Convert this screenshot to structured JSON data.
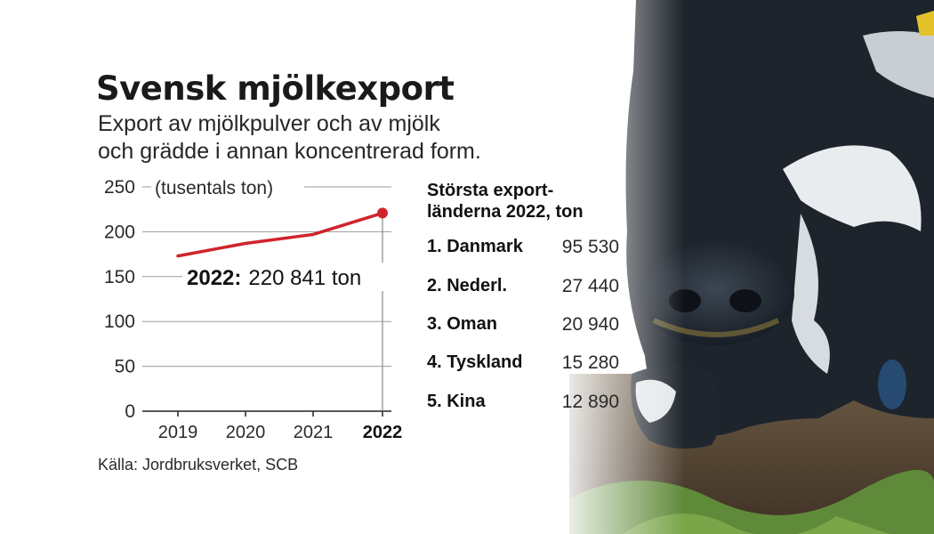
{
  "header": {
    "title": "Svensk mjölkexport",
    "subtitle_lines": [
      "Export av mjölkpulver och av mjölk",
      "och grädde i annan koncentrerad form."
    ]
  },
  "chart_data": {
    "type": "line",
    "unit_label": "(tusentals ton)",
    "x": [
      "2019",
      "2020",
      "2021",
      "2022"
    ],
    "series": [
      {
        "values": [
          173,
          187,
          197,
          220.841
        ]
      }
    ],
    "ylim": [
      0,
      250
    ],
    "yticks": [
      0,
      50,
      100,
      150,
      200,
      250
    ],
    "grid": true,
    "highlight_category": "2022",
    "annotation": {
      "year": "2022:",
      "value": "220 841 ton"
    },
    "color": "#d0232d"
  },
  "table": {
    "title_lines": [
      "Största export-",
      "länderna 2022, ton"
    ],
    "rows": [
      {
        "name": "1. Danmark",
        "value": "95 530"
      },
      {
        "name": "2. Nederl.",
        "value": "27 440"
      },
      {
        "name": "3. Oman",
        "value": "20 940"
      },
      {
        "name": "4. Tyskland",
        "value": "15 280"
      },
      {
        "name": "5. Kina",
        "value": "12 890"
      }
    ]
  },
  "source": "Källa: Jordbruksverket, SCB"
}
